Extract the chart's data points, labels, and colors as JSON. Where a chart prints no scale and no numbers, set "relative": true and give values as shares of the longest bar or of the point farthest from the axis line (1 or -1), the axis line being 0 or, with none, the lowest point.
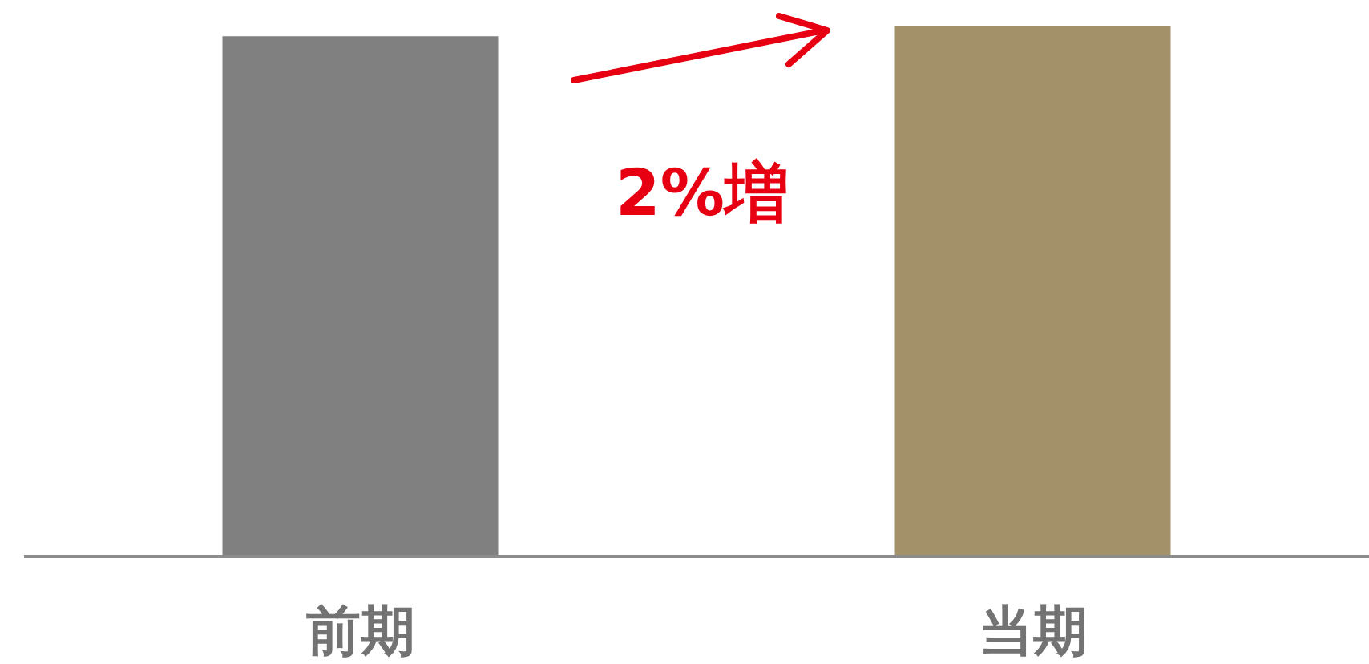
{
  "chart_data": {
    "type": "bar",
    "relative": true,
    "categories": [
      "前期",
      "当期"
    ],
    "values": [
      0.98,
      1
    ],
    "colors": [
      "#808080",
      "#a39169"
    ],
    "annotations": [
      "2%増"
    ]
  }
}
